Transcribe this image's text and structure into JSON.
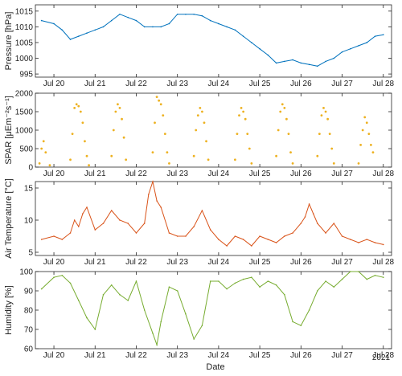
{
  "xlabel": "Date",
  "year_label": "2021",
  "x_ticks": [
    "Jul 20",
    "Jul 21",
    "Jul 22",
    "Jul 23",
    "Jul 24",
    "Jul 25",
    "Jul 26",
    "Jul 27",
    "Jul 28"
  ],
  "chart_data": [
    {
      "type": "line",
      "ylabel": "Pressure [hPa]",
      "ylim": [
        994,
        1017
      ],
      "yticks": [
        995,
        1000,
        1005,
        1010,
        1015
      ],
      "color": "#0072BD",
      "x_unit": "days from Jul 20 00:00",
      "series": [
        {
          "x": [
            -0.3,
            0.0,
            0.2,
            0.4,
            0.6,
            0.8,
            1.0,
            1.2,
            1.4,
            1.6,
            1.8,
            2.0,
            2.2,
            2.4,
            2.6,
            2.8,
            3.0,
            3.2,
            3.4,
            3.6,
            3.8,
            4.0,
            4.2,
            4.4,
            4.6,
            4.8,
            5.0,
            5.2,
            5.4,
            5.6,
            5.8,
            6.0,
            6.2,
            6.4,
            6.6,
            6.8,
            7.0,
            7.2,
            7.4,
            7.6,
            7.8,
            8.0
          ],
          "y": [
            1012,
            1011,
            1009,
            1006,
            1007,
            1008,
            1009,
            1010,
            1012,
            1014,
            1013,
            1012,
            1010,
            1010,
            1010,
            1011,
            1014,
            1014,
            1014,
            1013.5,
            1012,
            1011,
            1010,
            1009,
            1007,
            1005,
            1003,
            1001,
            998.5,
            999,
            999.5,
            998.5,
            998,
            997.5,
            999,
            1000,
            1002,
            1003,
            1004,
            1005,
            1007,
            1007.5
          ]
        }
      ]
    },
    {
      "type": "scatter",
      "ylabel": "SPAR [μEm⁻²s⁻¹]",
      "ylim": [
        0,
        2000
      ],
      "yticks": [
        0,
        500,
        1000,
        1500,
        2000
      ],
      "color": "#EDB120",
      "x_unit": "days from Jul 20 00:00",
      "daily_peak_dates": [
        "Jul 19",
        "Jul 20",
        "Jul 21",
        "Jul 22",
        "Jul 23",
        "Jul 24",
        "Jul 25",
        "Jul 26",
        "Jul 27"
      ],
      "daily_peak_values": [
        700,
        1750,
        1700,
        1900,
        1600,
        1600,
        1700,
        1650,
        1350
      ],
      "series": [
        {
          "x": [
            -0.35,
            -0.3,
            -0.25,
            -0.2,
            -0.1,
            0.4,
            0.45,
            0.5,
            0.55,
            0.6,
            0.65,
            0.7,
            0.75,
            0.8,
            0.85,
            1.4,
            1.45,
            1.5,
            1.55,
            1.6,
            1.65,
            1.7,
            1.75,
            2.4,
            2.45,
            2.5,
            2.55,
            2.6,
            2.65,
            2.7,
            2.75,
            2.8,
            3.4,
            3.45,
            3.5,
            3.55,
            3.6,
            3.65,
            3.7,
            3.75,
            4.4,
            4.45,
            4.5,
            4.55,
            4.6,
            4.65,
            4.7,
            4.75,
            4.8,
            5.4,
            5.45,
            5.5,
            5.55,
            5.6,
            5.65,
            5.7,
            5.75,
            5.8,
            6.4,
            6.45,
            6.5,
            6.55,
            6.6,
            6.65,
            6.7,
            6.75,
            6.8,
            7.4,
            7.45,
            7.5,
            7.55,
            7.6,
            7.65,
            7.7,
            7.75
          ],
          "y": [
            100,
            500,
            700,
            400,
            50,
            200,
            900,
            1600,
            1700,
            1650,
            1500,
            1200,
            700,
            300,
            50,
            300,
            1000,
            1500,
            1700,
            1600,
            1300,
            800,
            200,
            400,
            1200,
            1900,
            1800,
            1700,
            1400,
            900,
            400,
            100,
            300,
            1000,
            1400,
            1600,
            1500,
            1200,
            700,
            200,
            200,
            900,
            1400,
            1600,
            1500,
            1300,
            900,
            500,
            100,
            300,
            1000,
            1500,
            1700,
            1600,
            1300,
            900,
            400,
            100,
            300,
            900,
            1400,
            1600,
            1500,
            1300,
            900,
            500,
            100,
            100,
            600,
            1000,
            1350,
            1200,
            900,
            600,
            400
          ]
        }
      ]
    },
    {
      "type": "line",
      "ylabel": "Air Temperature [°C]",
      "ylim": [
        4.5,
        16
      ],
      "yticks": [
        5,
        10,
        15
      ],
      "color": "#D95319",
      "x_unit": "days from Jul 20 00:00",
      "series": [
        {
          "x": [
            -0.3,
            0.0,
            0.2,
            0.4,
            0.5,
            0.6,
            0.7,
            0.8,
            1.0,
            1.2,
            1.4,
            1.6,
            1.8,
            2.0,
            2.2,
            2.3,
            2.4,
            2.5,
            2.6,
            2.8,
            3.0,
            3.2,
            3.4,
            3.6,
            3.8,
            4.0,
            4.2,
            4.4,
            4.6,
            4.8,
            5.0,
            5.2,
            5.4,
            5.6,
            5.8,
            6.0,
            6.1,
            6.2,
            6.3,
            6.4,
            6.6,
            6.8,
            7.0,
            7.2,
            7.4,
            7.6,
            7.8,
            8.0
          ],
          "y": [
            7,
            7.5,
            7,
            8,
            10,
            9,
            11,
            12,
            8.5,
            9.5,
            11.5,
            10,
            9.5,
            8,
            9.5,
            14,
            16,
            13,
            12,
            8,
            7.5,
            7.5,
            9,
            11.5,
            8.5,
            7,
            6,
            7.5,
            7,
            6,
            7.5,
            7,
            6.5,
            7.5,
            8,
            9.5,
            10.5,
            12.5,
            11,
            9.5,
            8,
            9.5,
            7.5,
            7,
            6.5,
            7,
            6.5,
            6.2
          ]
        }
      ]
    },
    {
      "type": "line",
      "ylabel": "Humidity [%]",
      "ylim": [
        60,
        100
      ],
      "yticks": [
        60,
        70,
        80,
        90,
        100
      ],
      "color": "#77AC30",
      "x_unit": "days from Jul 20 00:00",
      "series": [
        {
          "x": [
            -0.3,
            0.0,
            0.2,
            0.4,
            0.6,
            0.8,
            1.0,
            1.2,
            1.4,
            1.6,
            1.8,
            2.0,
            2.2,
            2.4,
            2.5,
            2.6,
            2.8,
            3.0,
            3.2,
            3.4,
            3.6,
            3.8,
            4.0,
            4.2,
            4.4,
            4.6,
            4.8,
            5.0,
            5.2,
            5.4,
            5.6,
            5.8,
            6.0,
            6.2,
            6.4,
            6.6,
            6.8,
            7.0,
            7.2,
            7.4,
            7.6,
            7.8,
            8.0
          ],
          "y": [
            91,
            97,
            98,
            94,
            85,
            76,
            70,
            88,
            93,
            88,
            85,
            95,
            80,
            68,
            62,
            74,
            92,
            90,
            78,
            65,
            72,
            95,
            95,
            91,
            94,
            96,
            97,
            92,
            95,
            93,
            88,
            74,
            72,
            80,
            90,
            95,
            92,
            96,
            100,
            100,
            96,
            98,
            97
          ]
        }
      ]
    }
  ]
}
